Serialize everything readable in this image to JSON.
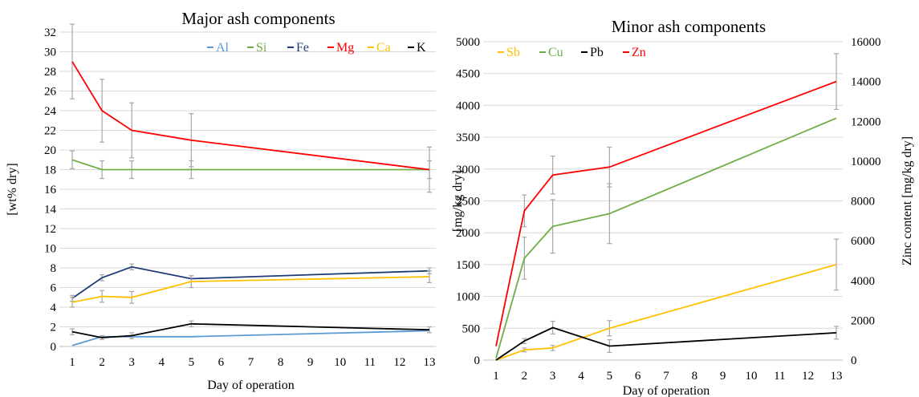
{
  "chart_data": [
    {
      "type": "line",
      "title": "Major ash components",
      "xlabel": "Day of operation",
      "ylabel": "[wt% dry]",
      "x": [
        1,
        2,
        3,
        5,
        13
      ],
      "xlim": [
        1,
        13
      ],
      "xticks": [
        "1",
        "2",
        "3",
        "4",
        "5",
        "6",
        "7",
        "8",
        "9",
        "10",
        "11",
        "12",
        "13"
      ],
      "ylim": [
        0,
        32
      ],
      "yticks": [
        "0",
        "2",
        "4",
        "6",
        "8",
        "10",
        "12",
        "14",
        "16",
        "18",
        "20",
        "22",
        "24",
        "26",
        "28",
        "30",
        "32"
      ],
      "grid": true,
      "legend_position": "top-right",
      "series": [
        {
          "name": "Al",
          "color": "#5b9bd5",
          "values": [
            0.1,
            1.0,
            1.0,
            1.0,
            1.6
          ]
        },
        {
          "name": "Si",
          "color": "#70ad47",
          "values": [
            19,
            18,
            18,
            18,
            18
          ],
          "errors": [
            0.9,
            0.9,
            0.9,
            0.9,
            0.9
          ]
        },
        {
          "name": "Fe",
          "color": "#1f3a78",
          "values": [
            4.9,
            7.0,
            8.1,
            6.9,
            7.7
          ],
          "errors": [
            0.3,
            0.3,
            0.3,
            0.3,
            0.3
          ]
        },
        {
          "name": "Mg",
          "color": "#ff0000",
          "values": [
            29,
            24,
            22,
            21,
            18
          ],
          "errors": [
            3.8,
            3.2,
            2.8,
            2.7,
            2.3
          ]
        },
        {
          "name": "Ca",
          "color": "#ffc000",
          "values": [
            4.5,
            5.1,
            5.0,
            6.6,
            7.1
          ],
          "errors": [
            0.5,
            0.6,
            0.6,
            0.6,
            0.6
          ]
        },
        {
          "name": "K",
          "color": "#000000",
          "values": [
            1.5,
            0.9,
            1.1,
            2.3,
            1.7
          ],
          "errors": [
            0.3,
            0.2,
            0.3,
            0.3,
            0.3
          ]
        }
      ]
    },
    {
      "type": "line",
      "title": "Minor ash components",
      "xlabel": "Day of operation",
      "ylabel": "[mg/kg dry]",
      "y2label": "Zinc content [mg/kg dry]",
      "x": [
        1,
        2,
        3,
        5,
        13
      ],
      "xlim": [
        1,
        13
      ],
      "xticks": [
        "1",
        "2",
        "3",
        "4",
        "5",
        "6",
        "7",
        "8",
        "9",
        "10",
        "11",
        "12",
        "13"
      ],
      "ylim": [
        0,
        5000
      ],
      "yticks": [
        "0",
        "500",
        "1000",
        "1500",
        "2000",
        "2500",
        "3000",
        "3500",
        "4000",
        "4500",
        "5000"
      ],
      "y2lim": [
        0,
        16000
      ],
      "y2ticks": [
        "0",
        "2000",
        "4000",
        "6000",
        "8000",
        "10000",
        "12000",
        "14000",
        "16000"
      ],
      "grid": true,
      "legend_position": "top-left",
      "series": [
        {
          "name": "Sb",
          "color": "#ffc000",
          "axis": "left",
          "values": [
            0,
            160,
            190,
            500,
            1500
          ],
          "errors": [
            0,
            30,
            40,
            120,
            400
          ]
        },
        {
          "name": "Cu",
          "color": "#70ad47",
          "axis": "left",
          "values": [
            30,
            1600,
            2100,
            2300,
            3800
          ],
          "errors": [
            0,
            330,
            420,
            470,
            0
          ]
        },
        {
          "name": "Pb",
          "color": "#000000",
          "axis": "left",
          "values": [
            0,
            300,
            510,
            220,
            430
          ],
          "errors": [
            0,
            40,
            100,
            100,
            100
          ]
        },
        {
          "name": "Zn",
          "color": "#ff0000",
          "axis": "right",
          "values": [
            700,
            7500,
            9300,
            9700,
            14000
          ],
          "errors": [
            0,
            800,
            950,
            1000,
            1400
          ]
        }
      ]
    }
  ]
}
